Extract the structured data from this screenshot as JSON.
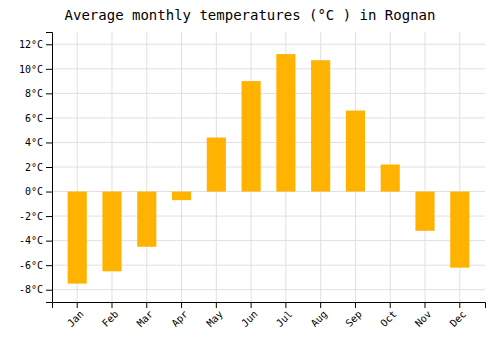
{
  "chart_data": {
    "type": "bar",
    "title": "Average monthly temperatures (°C ) in Rognan",
    "categories": [
      "Jan",
      "Feb",
      "Mar",
      "Apr",
      "May",
      "Jun",
      "Jul",
      "Aug",
      "Sep",
      "Oct",
      "Nov",
      "Dec"
    ],
    "values": [
      -7.5,
      -6.5,
      -4.5,
      -0.7,
      4.4,
      9.0,
      11.2,
      10.7,
      6.6,
      2.2,
      -3.2,
      -6.2
    ],
    "color": "#FFB300",
    "ylim": [
      -9,
      13
    ],
    "yticks": [
      {
        "value": -8,
        "label": "-8°C"
      },
      {
        "value": -6,
        "label": "-6°C"
      },
      {
        "value": -4,
        "label": "-4°C"
      },
      {
        "value": -2,
        "label": "-2°C"
      },
      {
        "value": 0,
        "label": "0°C"
      },
      {
        "value": 2,
        "label": "2°C"
      },
      {
        "value": 4,
        "label": "4°C"
      },
      {
        "value": 6,
        "label": "6°C"
      },
      {
        "value": 8,
        "label": "8°C"
      },
      {
        "value": 10,
        "label": "10°C"
      },
      {
        "value": 12,
        "label": "12°C"
      }
    ],
    "grid": true
  }
}
